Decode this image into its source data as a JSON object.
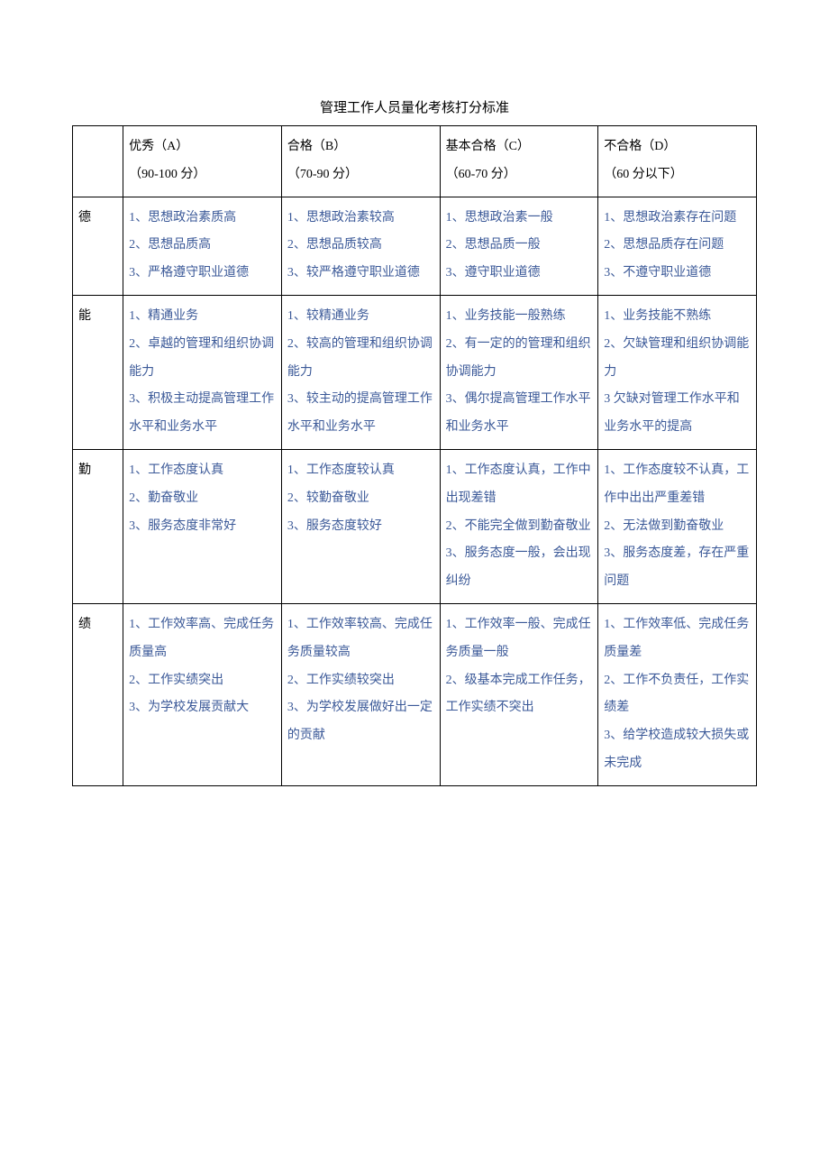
{
  "title": "管理工作人员量化考核打分标准",
  "colors": {
    "text_black": "#000000",
    "text_blue": "#3b5998",
    "border": "#000000",
    "background": "#ffffff"
  },
  "typography": {
    "title_fontsize": 15,
    "cell_fontsize": 14,
    "line_height": 2.2,
    "font_family": "SimSun"
  },
  "columns": {
    "category_width": 55,
    "grade_width": 172
  },
  "headers": {
    "col_a_line1": "优秀（A）",
    "col_a_line2": "（90-100 分）",
    "col_b_line1": "合格（B）",
    "col_b_line2": "（70-90 分）",
    "col_c_line1": "基本合格（C）",
    "col_c_line2": "（60-70 分）",
    "col_d_line1": "不合格（D）",
    "col_d_line2": "（60 分以下）"
  },
  "rows": {
    "de": {
      "label": "德",
      "a": "1、思想政治素质高\n2、思想品质高\n3、严格遵守职业道德",
      "b": "1、思想政治素较高\n2、思想品质较高\n3、较严格遵守职业道德",
      "c": "1、思想政治素一般\n2、思想品质一般\n3、遵守职业道德",
      "d": "1、思想政治素存在问题\n2、思想品质存在问题\n3、不遵守职业道德"
    },
    "neng": {
      "label": "能",
      "a": "1、精通业务\n2、卓越的管理和组织协调能力\n3、积极主动提高管理工作水平和业务水平",
      "b": "1、较精通业务\n2、较高的管理和组织协调能力\n3、较主动的提高管理工作水平和业务水平",
      "c": "1、业务技能一般熟练\n2、有一定的的管理和组织协调能力\n3、偶尔提高管理工作水平和业务水平",
      "d": "1、业务技能不熟练\n2、欠缺管理和组织协调能力\n3 欠缺对管理工作水平和业务水平的提高"
    },
    "qin": {
      "label": "勤",
      "a": "1、工作态度认真\n2、勤奋敬业\n3、服务态度非常好",
      "b": "1、工作态度较认真\n2、较勤奋敬业\n3、服务态度较好",
      "c": "1、工作态度认真，工作中出现差错\n2、不能完全做到勤奋敬业\n3、服务态度一般，会出现纠纷",
      "d": "1、工作态度较不认真，工作中出出严重差错\n2、无法做到勤奋敬业\n3、服务态度差，存在严重问题"
    },
    "ji": {
      "label": "绩",
      "a": "1、工作效率高、完成任务质量高\n2、工作实绩突出\n3、为学校发展贡献大",
      "b": "1、工作效率较高、完成任务质量较高\n2、工作实绩较突出\n3、为学校发展做好出一定的贡献",
      "c": "1、工作效率一般、完成任务质量一般\n2、级基本完成工作任务，工作实绩不突出",
      "d": "1、工作效率低、完成任务质量差\n2、工作不负责任，工作实绩差\n3、给学校造成较大损失或未完成"
    }
  }
}
